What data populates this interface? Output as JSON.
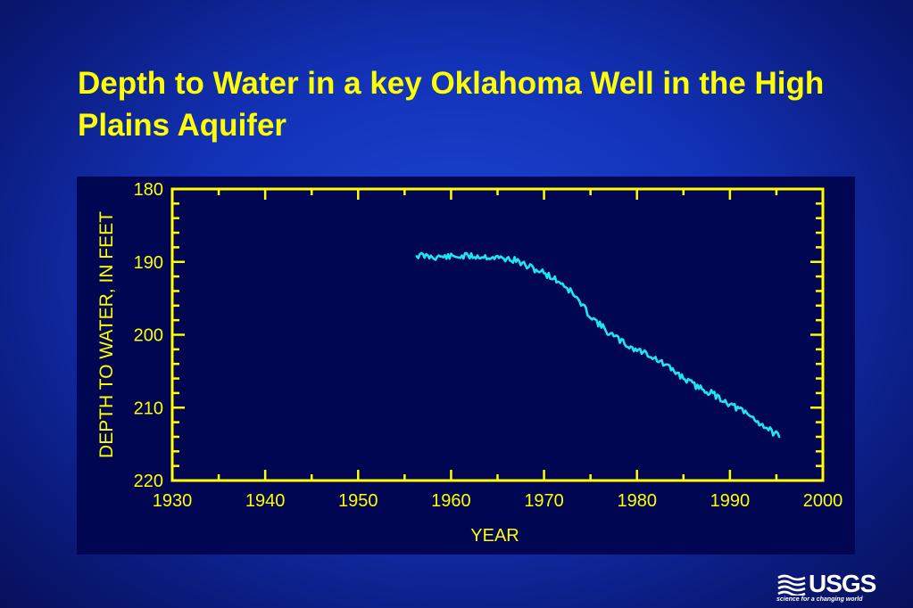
{
  "slide": {
    "title": "Depth to Water in a key Oklahoma Well in the High Plains Aquifer"
  },
  "logo": {
    "text": "USGS",
    "tagline": "science for a changing world"
  },
  "colors": {
    "background": "#1232b6",
    "title": "#ffff00",
    "plot_background": "#000651",
    "axis": "#ffff00",
    "series": "#1ee6f0"
  },
  "chart_data": {
    "type": "line",
    "title": "",
    "xlabel": "YEAR",
    "ylabel": "DEPTH TO WATER, IN FEET",
    "xlim": [
      1930,
      2000
    ],
    "ylim": [
      180,
      220
    ],
    "y_inverted": true,
    "x_ticks": [
      1930,
      1940,
      1950,
      1960,
      1970,
      1980,
      1990,
      2000
    ],
    "y_ticks": [
      180,
      190,
      200,
      210,
      220
    ],
    "grid": false,
    "legend": "none",
    "series": [
      {
        "x": [
          1956.3,
          1958,
          1960,
          1962,
          1964,
          1966,
          1967,
          1968,
          1970,
          1972,
          1973,
          1974,
          1975,
          1976,
          1977,
          1978,
          1979,
          1980,
          1981,
          1982,
          1984,
          1986,
          1988,
          1990,
          1992,
          1994,
          1995.3
        ],
        "y": [
          189.1,
          189.3,
          189.3,
          189.2,
          189.3,
          189.6,
          189.8,
          190.5,
          191.5,
          193,
          194.2,
          195.8,
          197.4,
          198.6,
          199.8,
          200.6,
          201.5,
          202.1,
          202.5,
          203.3,
          205,
          206.8,
          208,
          209.5,
          211,
          212.8,
          214
        ]
      }
    ]
  }
}
